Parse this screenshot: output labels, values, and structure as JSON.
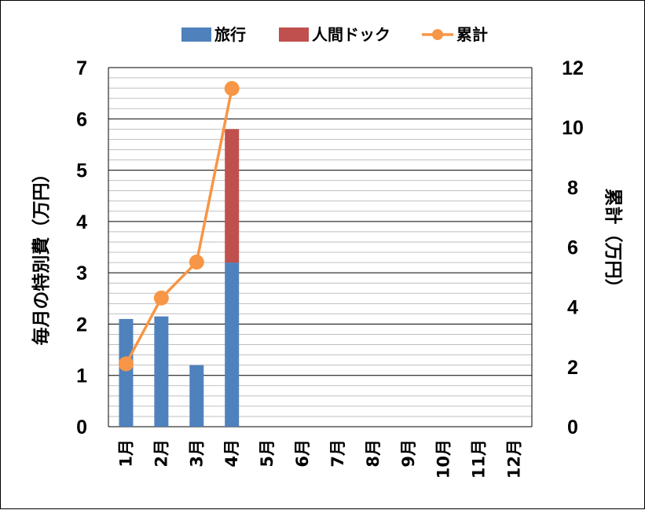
{
  "chart_data": {
    "type": "bar",
    "categories": [
      "1月",
      "2月",
      "3月",
      "4月",
      "5月",
      "6月",
      "7月",
      "8月",
      "9月",
      "10月",
      "11月",
      "12月"
    ],
    "series": [
      {
        "name": "旅行",
        "type": "bar",
        "stack": "monthly",
        "axis": "left",
        "color": "#4f81bd",
        "values": [
          2.1,
          2.15,
          1.2,
          3.2,
          null,
          null,
          null,
          null,
          null,
          null,
          null,
          null
        ]
      },
      {
        "name": "人間ドック",
        "type": "bar",
        "stack": "monthly",
        "axis": "left",
        "color": "#c0504d",
        "values": [
          0,
          0,
          0,
          2.6,
          null,
          null,
          null,
          null,
          null,
          null,
          null,
          null
        ]
      },
      {
        "name": "累計",
        "type": "line",
        "axis": "right",
        "color": "#f79646",
        "values": [
          2.1,
          4.3,
          5.5,
          11.3,
          null,
          null,
          null,
          null,
          null,
          null,
          null,
          null
        ]
      }
    ],
    "ylabel": "毎月の特別費（万円）",
    "y2label": "累計（万円）",
    "ylim": [
      0,
      7
    ],
    "y2lim": [
      0,
      12
    ],
    "yticks": [
      "0",
      "1",
      "2",
      "3",
      "4",
      "5",
      "6",
      "7"
    ],
    "y2ticks": [
      "0",
      "2",
      "4",
      "6",
      "8",
      "10",
      "12"
    ],
    "grid": true,
    "legend": "top"
  }
}
